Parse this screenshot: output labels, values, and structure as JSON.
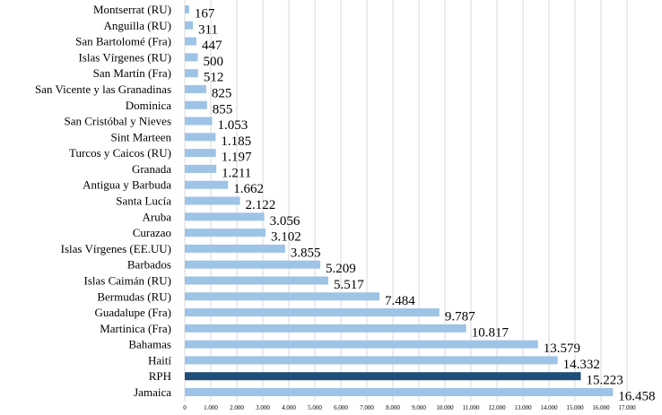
{
  "chart_data": {
    "type": "bar",
    "orientation": "horizontal",
    "categories": [
      "Montserrat (RU)",
      "Anguilla (RU)",
      "San Bartolomé (Fra)",
      "Islas Vírgenes (RU)",
      "San Martín (Fra)",
      "San Vicente y las Granadinas",
      "Dominica",
      "San Cristóbal y Nieves",
      "Sint Marteen",
      "Turcos y Caicos (RU)",
      "Granada",
      "Antigua y Barbuda",
      "Santa Lucía",
      "Aruba",
      "Curazao",
      "Islas Vírgenes (EE.UU)",
      "Barbados",
      "Islas Caimán (RU)",
      "Bermudas (RU)",
      "Guadalupe (Fra)",
      "Martinica (Fra)",
      "Bahamas",
      "Haití",
      "RPH",
      "Jamaica"
    ],
    "values": [
      167,
      311,
      447,
      500,
      512,
      825,
      855,
      1053,
      1185,
      1197,
      1211,
      1662,
      2122,
      3056,
      3102,
      3855,
      5209,
      5517,
      7484,
      9787,
      10817,
      13579,
      14332,
      15223,
      16458
    ],
    "value_labels": [
      "167",
      "311",
      "447",
      "500",
      "512",
      "825",
      "855",
      "1.053",
      "1.185",
      "1.197",
      "1.211",
      "1.662",
      "2.122",
      "3.056",
      "3.102",
      "3.855",
      "5.209",
      "5.517",
      "7.484",
      "9.787",
      "10.817",
      "13.579",
      "14.332",
      "15.223",
      "16.458"
    ],
    "xlim": [
      0,
      17000
    ],
    "xticks": [
      "0",
      "1.000",
      "2.000",
      "3.000",
      "4.000",
      "5.000",
      "6.000",
      "7.000",
      "8.000",
      "9.000",
      "10.000",
      "11.000",
      "12.000",
      "13.000",
      "14.000",
      "15.000",
      "16.000",
      "17.000"
    ],
    "grid": true,
    "bar_color": "#9dc3e6",
    "highlight_category": "RPH",
    "highlight_color": "#1f4e79",
    "title": "",
    "xlabel": "",
    "ylabel": ""
  }
}
